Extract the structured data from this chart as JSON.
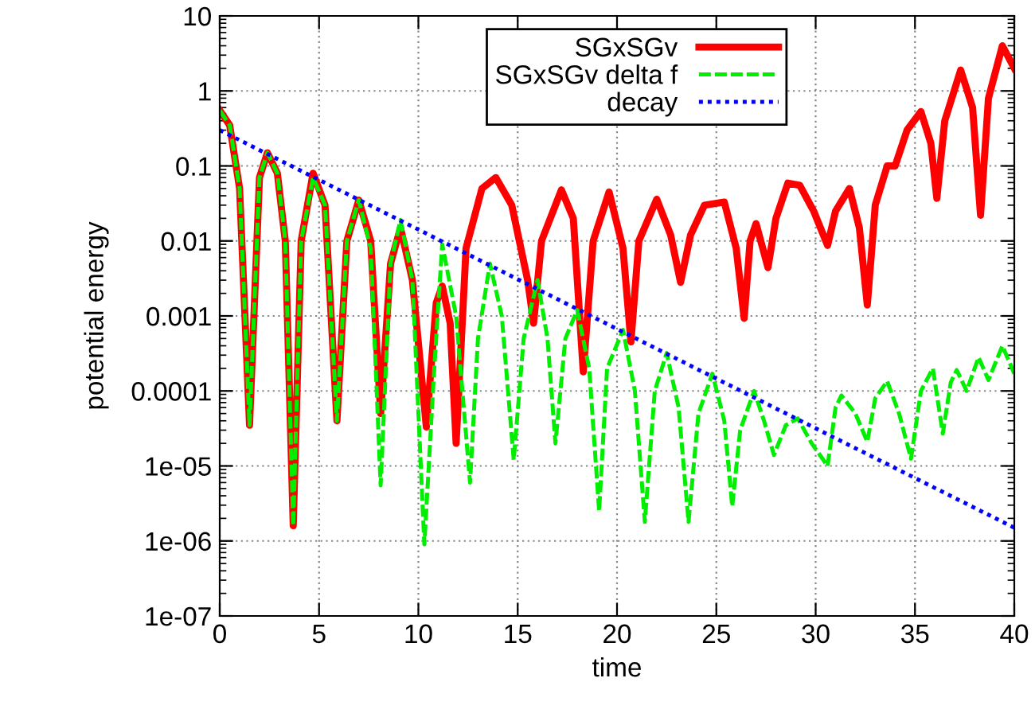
{
  "chart_data": {
    "type": "line",
    "xlabel": "time",
    "ylabel": "potential energy",
    "log": "y",
    "grid": true,
    "legend": "top right",
    "xlim": [
      0,
      40
    ],
    "xticks": [
      0,
      5,
      10,
      15,
      20,
      25,
      30,
      35,
      40
    ],
    "ylim": [
      1e-07,
      10
    ],
    "yticks": [
      1e-07,
      1e-06,
      1e-05,
      0.0001,
      0.001,
      0.01,
      0.1,
      1,
      10
    ],
    "series": [
      {
        "name": "SGxSGv",
        "color": "#ff0000",
        "line_style": "solid",
        "x": [
          0,
          0.5,
          1.0,
          1.5,
          2.0,
          2.4,
          2.9,
          3.3,
          3.7,
          4.1,
          4.7,
          5.3,
          5.9,
          6.4,
          7.0,
          7.6,
          8.1,
          8.6,
          9.1,
          9.7,
          10.4,
          10.9,
          11.2,
          11.6,
          11.9,
          12.4,
          13.2,
          13.9,
          14.7,
          15.5,
          15.8,
          16.2,
          17.2,
          17.8,
          18.3,
          18.8,
          19.6,
          20.3,
          20.7,
          21.1,
          22.0,
          22.7,
          23.2,
          23.7,
          24.4,
          25.4,
          26.0,
          26.4,
          26.7,
          27.0,
          27.6,
          28.0,
          28.6,
          29.2,
          29.9,
          30.6,
          31.0,
          31.7,
          32.2,
          32.6,
          33.0,
          33.6,
          34.0,
          34.6,
          35.3,
          35.8,
          36.1,
          36.5,
          37.3,
          37.9,
          38.3,
          38.7,
          39.4,
          40
        ],
        "values": [
          0.55,
          0.35,
          0.05,
          3.5e-05,
          0.07,
          0.15,
          0.08,
          0.01,
          1.6e-06,
          0.01,
          0.08,
          0.03,
          4e-05,
          0.01,
          0.035,
          0.01,
          5e-05,
          0.005,
          0.015,
          0.003,
          3.3e-05,
          0.0015,
          0.0025,
          0.0008,
          2e-05,
          0.008,
          0.05,
          0.07,
          0.03,
          0.003,
          0.0008,
          0.01,
          0.048,
          0.02,
          0.00018,
          0.01,
          0.045,
          0.008,
          0.00045,
          0.01,
          0.036,
          0.012,
          0.0028,
          0.012,
          0.03,
          0.033,
          0.008,
          0.00093,
          0.01,
          0.017,
          0.0044,
          0.02,
          0.059,
          0.055,
          0.025,
          0.0087,
          0.025,
          0.05,
          0.015,
          0.0014,
          0.03,
          0.1,
          0.1,
          0.3,
          0.53,
          0.2,
          0.037,
          0.4,
          1.9,
          0.6,
          0.022,
          0.8,
          4.0,
          2.0
        ]
      },
      {
        "name": "SGxSGv delta f",
        "color": "#00ee00",
        "line_style": "dashed",
        "x": [
          0,
          0.5,
          1.0,
          1.5,
          2.0,
          2.4,
          2.9,
          3.3,
          3.7,
          4.1,
          4.7,
          5.3,
          5.9,
          6.4,
          7.0,
          7.6,
          8.1,
          8.6,
          9.1,
          9.7,
          10.3,
          10.8,
          11.2,
          11.9,
          12.6,
          13.0,
          13.6,
          14.2,
          14.8,
          15.3,
          16.0,
          16.5,
          16.9,
          17.4,
          18.0,
          18.6,
          19.1,
          19.5,
          20.3,
          20.9,
          21.4,
          21.9,
          22.5,
          23.1,
          23.6,
          24.1,
          24.8,
          25.4,
          25.8,
          26.2,
          26.9,
          27.4,
          27.9,
          28.5,
          29.1,
          29.8,
          30.6,
          31.0,
          31.3,
          32.0,
          32.6,
          33.0,
          33.6,
          34.2,
          34.8,
          35.3,
          35.9,
          36.4,
          36.8,
          37.1,
          37.6,
          38.2,
          38.7,
          39.4,
          40
        ],
        "values": [
          0.55,
          0.35,
          0.05,
          3.5e-05,
          0.07,
          0.15,
          0.08,
          0.01,
          1.6e-06,
          0.01,
          0.07,
          0.03,
          4e-05,
          0.01,
          0.035,
          0.008,
          5.5e-06,
          0.005,
          0.019,
          0.003,
          9e-07,
          0.0002,
          0.009,
          0.001,
          6e-06,
          0.0005,
          0.005,
          0.001,
          1.2e-05,
          0.0005,
          0.003,
          0.0005,
          2e-05,
          0.0005,
          0.0012,
          0.0002,
          2.5e-06,
          0.0002,
          0.00065,
          0.0001,
          1.8e-06,
          0.0001,
          0.00032,
          6e-05,
          1.8e-06,
          5e-05,
          0.00017,
          4e-05,
          2.9e-06,
          3e-05,
          0.0001,
          4e-05,
          1.4e-05,
          3.5e-05,
          4.3e-05,
          2e-05,
          1e-05,
          6e-05,
          8.7e-05,
          5e-05,
          2.1e-05,
          8e-05,
          0.000135,
          5e-05,
          1.25e-05,
          0.0001,
          0.0002,
          2.7e-05,
          0.00013,
          0.00019,
          0.0001,
          0.00028,
          0.00014,
          0.0004,
          0.00017
        ]
      },
      {
        "name": "decay",
        "color": "#0000ff",
        "line_style": "dotted",
        "x": [
          0,
          40
        ],
        "values": [
          0.3,
          1.5e-06
        ]
      }
    ]
  }
}
